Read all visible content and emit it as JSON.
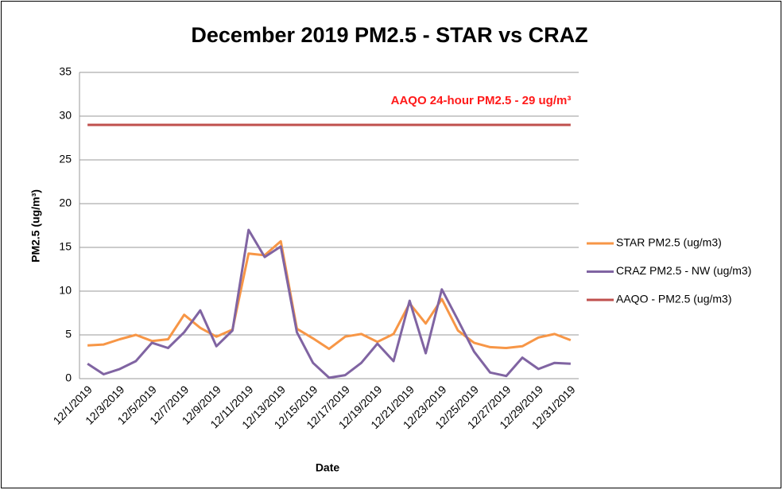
{
  "chart_data": {
    "type": "line",
    "title": "December 2019 PM2.5 - STAR vs CRAZ",
    "x_label": "Date",
    "y_label": "PM2.5 (ug/m³)",
    "annotation": "AAQO 24-hour PM2.5 - 29 ug/m³",
    "categories": [
      "12/1/2019",
      null,
      "12/3/2019",
      null,
      "12/5/2019",
      null,
      "12/7/2019",
      null,
      "12/9/2019",
      null,
      "12/11/2019",
      null,
      "12/13/2019",
      null,
      "12/15/2019",
      null,
      "12/17/2019",
      null,
      "12/19/2019",
      null,
      "12/21/2019",
      null,
      "12/23/2019",
      null,
      "12/25/2019",
      null,
      "12/27/2019",
      null,
      "12/29/2019",
      null,
      "12/31/2019"
    ],
    "series": [
      {
        "name": "STAR PM2.5 (ug/m3)",
        "color": "#f79646",
        "values": [
          3.8,
          3.9,
          4.5,
          5.0,
          4.3,
          4.5,
          7.3,
          5.8,
          4.8,
          5.6,
          14.3,
          14.1,
          15.7,
          5.7,
          4.6,
          3.4,
          4.8,
          5.1,
          4.2,
          5.1,
          8.6,
          6.3,
          9.1,
          5.5,
          4.1,
          3.6,
          3.5,
          3.7,
          4.7,
          5.1,
          4.4
        ]
      },
      {
        "name": "CRAZ PM2.5 - NW (ug/m3)",
        "color": "#8064a2",
        "values": [
          1.7,
          0.5,
          1.1,
          2.0,
          4.1,
          3.5,
          5.3,
          7.8,
          3.7,
          5.5,
          17.0,
          13.9,
          15.1,
          5.3,
          1.8,
          0.1,
          0.4,
          1.8,
          4.0,
          2.0,
          8.9,
          2.9,
          10.2,
          6.7,
          3.1,
          0.7,
          0.3,
          2.4,
          1.1,
          1.8,
          1.7
        ]
      },
      {
        "name": "AAQO - PM2.5 (ug/m3)",
        "color": "#c0504d",
        "values": [
          29,
          29,
          29,
          29,
          29,
          29,
          29,
          29,
          29,
          29,
          29,
          29,
          29,
          29,
          29,
          29,
          29,
          29,
          29,
          29,
          29,
          29,
          29,
          29,
          29,
          29,
          29,
          29,
          29,
          29,
          29
        ]
      }
    ],
    "ylim": [
      0,
      35
    ],
    "yticks": [
      0,
      5,
      10,
      15,
      20,
      25,
      30,
      35
    ],
    "grid": true,
    "legend": "right"
  }
}
